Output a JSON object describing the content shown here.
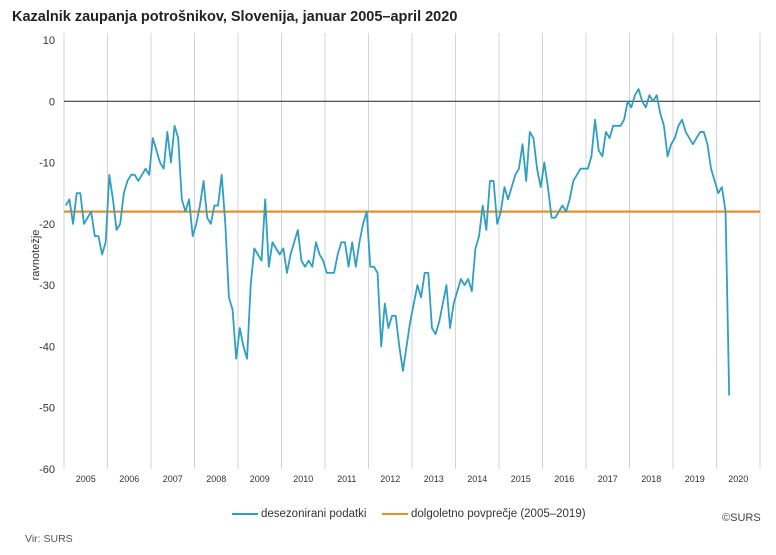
{
  "chart_data": {
    "type": "line",
    "title": "Kazalnik zaupanja potrošnikov, Slovenija, januar 2005–april 2020",
    "xlabel": "",
    "ylabel": "ravnotežje",
    "ylim": [
      -60,
      10
    ],
    "yticks": [
      10,
      0,
      -10,
      -20,
      -30,
      -40,
      -50,
      -60
    ],
    "ytick_labels": [
      "10",
      "0",
      "-10",
      "-20",
      "-30",
      "-40",
      "-50",
      "-60"
    ],
    "x_start": "2005-01",
    "x_end": "2020-12",
    "x_tick_labels": [
      "2005",
      "2006",
      "2007",
      "2008",
      "2009",
      "2010",
      "2011",
      "2012",
      "2013",
      "2014",
      "2015",
      "2016",
      "2017",
      "2018",
      "2019",
      "2020"
    ],
    "grid": "vertical per year",
    "zero_line": true,
    "legend_position": "bottom",
    "series": [
      {
        "name": "desezonirani podatki",
        "color": "#2f9fc2",
        "start": "2005-01",
        "frequency": "monthly",
        "values": [
          -17,
          -16,
          -20,
          -15,
          -15,
          -20,
          -19,
          -18,
          -22,
          -22,
          -25,
          -23,
          -12,
          -16,
          -21,
          -20,
          -15,
          -13,
          -12,
          -12,
          -13,
          -12,
          -11,
          -12,
          -6,
          -8,
          -10,
          -11,
          -5,
          -10,
          -4,
          -6,
          -16,
          -18,
          -16,
          -22,
          -20,
          -17,
          -13,
          -19,
          -20,
          -17,
          -17,
          -12,
          -20,
          -32,
          -34,
          -42,
          -37,
          -40,
          -42,
          -30,
          -24,
          -25,
          -26,
          -16,
          -27,
          -23,
          -24,
          -25,
          -24,
          -28,
          -25,
          -23,
          -21,
          -26,
          -27,
          -26,
          -27,
          -23,
          -25,
          -26,
          -28,
          -28,
          -28,
          -25,
          -23,
          -23,
          -27,
          -23,
          -27,
          -23,
          -20,
          -18,
          -27,
          -27,
          -28,
          -40,
          -33,
          -37,
          -35,
          -35,
          -40,
          -44,
          -40,
          -36,
          -33,
          -30,
          -32,
          -28,
          -28,
          -37,
          -38,
          -36,
          -33,
          -30,
          -37,
          -33,
          -31,
          -29,
          -30,
          -29,
          -31,
          -24,
          -22,
          -17,
          -21,
          -13,
          -13,
          -20,
          -18,
          -14,
          -16,
          -14,
          -12,
          -11,
          -7,
          -13,
          -5,
          -6,
          -11,
          -14,
          -10,
          -14,
          -19,
          -19,
          -18,
          -17,
          -18,
          -16,
          -13,
          -12,
          -11,
          -11,
          -11,
          -9,
          -3,
          -8,
          -9,
          -5,
          -6,
          -4,
          -4,
          -4,
          -3,
          0,
          -1,
          1,
          2,
          0,
          -1,
          1,
          0,
          1,
          -2,
          -4,
          -9,
          -7,
          -6,
          -4,
          -3,
          -5,
          -6,
          -7,
          -6,
          -5,
          -5,
          -7,
          -11,
          -13,
          -15,
          -14,
          -18,
          -48
        ]
      },
      {
        "name": "dolgoletno povprečje (2005–2019)",
        "color": "#e0922f",
        "constant": -18
      }
    ]
  },
  "footer": {
    "source": "Vir: SURS",
    "copyright": "©SURS"
  }
}
